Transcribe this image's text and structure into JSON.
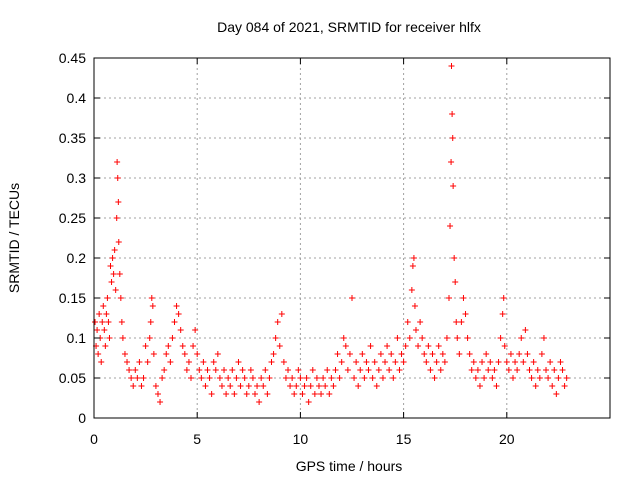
{
  "chart_data": {
    "type": "scatter",
    "title": "Day 084 of 2021, SRMTID for receiver hlfx",
    "xlabel": "GPS time / hours",
    "ylabel": "SRMTID / TECUs",
    "xlim": [
      0,
      25
    ],
    "ylim": [
      0,
      0.45
    ],
    "x_ticks": [
      0,
      5,
      10,
      15,
      20
    ],
    "x_tick_labels": [
      "0",
      "5",
      "10",
      "15",
      "20"
    ],
    "y_ticks": [
      0,
      0.05,
      0.1,
      0.15,
      0.2,
      0.25,
      0.3,
      0.35,
      0.4,
      0.45
    ],
    "y_tick_labels": [
      "0",
      "0.05",
      "0.1",
      "0.15",
      "0.2",
      "0.25",
      "0.3",
      "0.35",
      "0.4",
      "0.45"
    ],
    "grid": true,
    "marker": "+",
    "color": "#ff0000",
    "series": [
      {
        "name": "SRMTID",
        "points": [
          [
            0.05,
            0.12
          ],
          [
            0.1,
            0.09
          ],
          [
            0.15,
            0.11
          ],
          [
            0.2,
            0.08
          ],
          [
            0.25,
            0.13
          ],
          [
            0.3,
            0.1
          ],
          [
            0.35,
            0.07
          ],
          [
            0.4,
            0.12
          ],
          [
            0.45,
            0.14
          ],
          [
            0.5,
            0.11
          ],
          [
            0.55,
            0.09
          ],
          [
            0.6,
            0.13
          ],
          [
            0.65,
            0.15
          ],
          [
            0.7,
            0.12
          ],
          [
            0.75,
            0.1
          ],
          [
            0.8,
            0.19
          ],
          [
            0.85,
            0.17
          ],
          [
            0.9,
            0.2
          ],
          [
            0.95,
            0.18
          ],
          [
            1.0,
            0.21
          ],
          [
            1.05,
            0.16
          ],
          [
            1.1,
            0.25
          ],
          [
            1.12,
            0.32
          ],
          [
            1.15,
            0.3
          ],
          [
            1.18,
            0.27
          ],
          [
            1.2,
            0.22
          ],
          [
            1.25,
            0.18
          ],
          [
            1.3,
            0.15
          ],
          [
            1.35,
            0.12
          ],
          [
            1.4,
            0.1
          ],
          [
            1.5,
            0.08
          ],
          [
            1.6,
            0.07
          ],
          [
            1.7,
            0.06
          ],
          [
            1.8,
            0.05
          ],
          [
            1.9,
            0.04
          ],
          [
            2.0,
            0.06
          ],
          [
            2.1,
            0.05
          ],
          [
            2.2,
            0.07
          ],
          [
            2.3,
            0.04
          ],
          [
            2.4,
            0.05
          ],
          [
            2.5,
            0.09
          ],
          [
            2.6,
            0.07
          ],
          [
            2.7,
            0.1
          ],
          [
            2.75,
            0.12
          ],
          [
            2.8,
            0.15
          ],
          [
            2.85,
            0.14
          ],
          [
            2.9,
            0.08
          ],
          [
            3.0,
            0.04
          ],
          [
            3.1,
            0.03
          ],
          [
            3.2,
            0.02
          ],
          [
            3.3,
            0.05
          ],
          [
            3.4,
            0.06
          ],
          [
            3.5,
            0.08
          ],
          [
            3.6,
            0.09
          ],
          [
            3.7,
            0.07
          ],
          [
            3.8,
            0.1
          ],
          [
            3.9,
            0.12
          ],
          [
            4.0,
            0.14
          ],
          [
            4.1,
            0.13
          ],
          [
            4.2,
            0.11
          ],
          [
            4.3,
            0.09
          ],
          [
            4.4,
            0.08
          ],
          [
            4.5,
            0.06
          ],
          [
            4.6,
            0.07
          ],
          [
            4.7,
            0.05
          ],
          [
            4.8,
            0.09
          ],
          [
            4.9,
            0.11
          ],
          [
            5.0,
            0.08
          ],
          [
            5.1,
            0.06
          ],
          [
            5.2,
            0.05
          ],
          [
            5.3,
            0.07
          ],
          [
            5.4,
            0.04
          ],
          [
            5.5,
            0.06
          ],
          [
            5.6,
            0.05
          ],
          [
            5.7,
            0.03
          ],
          [
            5.8,
            0.07
          ],
          [
            5.9,
            0.06
          ],
          [
            6.0,
            0.08
          ],
          [
            6.1,
            0.05
          ],
          [
            6.2,
            0.04
          ],
          [
            6.3,
            0.06
          ],
          [
            6.4,
            0.03
          ],
          [
            6.5,
            0.05
          ],
          [
            6.6,
            0.04
          ],
          [
            6.7,
            0.06
          ],
          [
            6.8,
            0.03
          ],
          [
            6.9,
            0.05
          ],
          [
            7.0,
            0.07
          ],
          [
            7.1,
            0.04
          ],
          [
            7.2,
            0.06
          ],
          [
            7.3,
            0.05
          ],
          [
            7.4,
            0.03
          ],
          [
            7.5,
            0.04
          ],
          [
            7.6,
            0.06
          ],
          [
            7.7,
            0.05
          ],
          [
            7.8,
            0.03
          ],
          [
            7.9,
            0.04
          ],
          [
            8.0,
            0.02
          ],
          [
            8.1,
            0.05
          ],
          [
            8.2,
            0.04
          ],
          [
            8.3,
            0.06
          ],
          [
            8.4,
            0.03
          ],
          [
            8.5,
            0.05
          ],
          [
            8.6,
            0.07
          ],
          [
            8.7,
            0.08
          ],
          [
            8.8,
            0.1
          ],
          [
            8.9,
            0.12
          ],
          [
            9.0,
            0.09
          ],
          [
            9.1,
            0.13
          ],
          [
            9.2,
            0.07
          ],
          [
            9.3,
            0.05
          ],
          [
            9.4,
            0.06
          ],
          [
            9.5,
            0.04
          ],
          [
            9.6,
            0.05
          ],
          [
            9.7,
            0.03
          ],
          [
            9.8,
            0.04
          ],
          [
            9.9,
            0.06
          ],
          [
            10.0,
            0.05
          ],
          [
            10.1,
            0.03
          ],
          [
            10.2,
            0.04
          ],
          [
            10.3,
            0.05
          ],
          [
            10.4,
            0.02
          ],
          [
            10.5,
            0.04
          ],
          [
            10.6,
            0.06
          ],
          [
            10.7,
            0.03
          ],
          [
            10.8,
            0.05
          ],
          [
            10.9,
            0.04
          ],
          [
            11.0,
            0.03
          ],
          [
            11.1,
            0.05
          ],
          [
            11.2,
            0.04
          ],
          [
            11.3,
            0.06
          ],
          [
            11.4,
            0.03
          ],
          [
            11.5,
            0.05
          ],
          [
            11.6,
            0.04
          ],
          [
            11.7,
            0.06
          ],
          [
            11.8,
            0.08
          ],
          [
            11.9,
            0.05
          ],
          [
            12.0,
            0.07
          ],
          [
            12.1,
            0.1
          ],
          [
            12.2,
            0.09
          ],
          [
            12.3,
            0.06
          ],
          [
            12.4,
            0.08
          ],
          [
            12.5,
            0.15
          ],
          [
            12.6,
            0.05
          ],
          [
            12.7,
            0.07
          ],
          [
            12.8,
            0.04
          ],
          [
            12.9,
            0.06
          ],
          [
            13.0,
            0.08
          ],
          [
            13.1,
            0.05
          ],
          [
            13.2,
            0.07
          ],
          [
            13.3,
            0.06
          ],
          [
            13.4,
            0.09
          ],
          [
            13.5,
            0.05
          ],
          [
            13.6,
            0.07
          ],
          [
            13.7,
            0.04
          ],
          [
            13.8,
            0.06
          ],
          [
            13.9,
            0.08
          ],
          [
            14.0,
            0.05
          ],
          [
            14.1,
            0.07
          ],
          [
            14.2,
            0.09
          ],
          [
            14.3,
            0.06
          ],
          [
            14.4,
            0.08
          ],
          [
            14.5,
            0.05
          ],
          [
            14.6,
            0.07
          ],
          [
            14.7,
            0.1
          ],
          [
            14.8,
            0.06
          ],
          [
            14.9,
            0.08
          ],
          [
            15.0,
            0.07
          ],
          [
            15.1,
            0.09
          ],
          [
            15.2,
            0.12
          ],
          [
            15.3,
            0.1
          ],
          [
            15.4,
            0.16
          ],
          [
            15.45,
            0.19
          ],
          [
            15.5,
            0.2
          ],
          [
            15.55,
            0.14
          ],
          [
            15.6,
            0.11
          ],
          [
            15.7,
            0.09
          ],
          [
            15.8,
            0.12
          ],
          [
            15.9,
            0.1
          ],
          [
            16.0,
            0.08
          ],
          [
            16.1,
            0.07
          ],
          [
            16.2,
            0.09
          ],
          [
            16.3,
            0.06
          ],
          [
            16.4,
            0.08
          ],
          [
            16.5,
            0.05
          ],
          [
            16.6,
            0.07
          ],
          [
            16.7,
            0.09
          ],
          [
            16.8,
            0.06
          ],
          [
            16.9,
            0.08
          ],
          [
            17.0,
            0.07
          ],
          [
            17.1,
            0.1
          ],
          [
            17.2,
            0.15
          ],
          [
            17.25,
            0.24
          ],
          [
            17.3,
            0.32
          ],
          [
            17.32,
            0.44
          ],
          [
            17.35,
            0.38
          ],
          [
            17.38,
            0.35
          ],
          [
            17.4,
            0.29
          ],
          [
            17.45,
            0.2
          ],
          [
            17.5,
            0.17
          ],
          [
            17.55,
            0.12
          ],
          [
            17.6,
            0.1
          ],
          [
            17.7,
            0.08
          ],
          [
            17.8,
            0.12
          ],
          [
            17.9,
            0.15
          ],
          [
            18.0,
            0.13
          ],
          [
            18.1,
            0.1
          ],
          [
            18.2,
            0.08
          ],
          [
            18.3,
            0.06
          ],
          [
            18.4,
            0.07
          ],
          [
            18.5,
            0.05
          ],
          [
            18.6,
            0.06
          ],
          [
            18.7,
            0.04
          ],
          [
            18.8,
            0.07
          ],
          [
            18.9,
            0.05
          ],
          [
            19.0,
            0.08
          ],
          [
            19.1,
            0.06
          ],
          [
            19.2,
            0.07
          ],
          [
            19.3,
            0.05
          ],
          [
            19.4,
            0.06
          ],
          [
            19.5,
            0.04
          ],
          [
            19.6,
            0.07
          ],
          [
            19.7,
            0.1
          ],
          [
            19.8,
            0.13
          ],
          [
            19.85,
            0.15
          ],
          [
            19.9,
            0.09
          ],
          [
            20.0,
            0.07
          ],
          [
            20.1,
            0.06
          ],
          [
            20.2,
            0.08
          ],
          [
            20.3,
            0.05
          ],
          [
            20.4,
            0.07
          ],
          [
            20.5,
            0.06
          ],
          [
            20.6,
            0.08
          ],
          [
            20.7,
            0.1
          ],
          [
            20.8,
            0.07
          ],
          [
            20.9,
            0.11
          ],
          [
            21.0,
            0.08
          ],
          [
            21.1,
            0.06
          ],
          [
            21.2,
            0.05
          ],
          [
            21.3,
            0.07
          ],
          [
            21.4,
            0.04
          ],
          [
            21.5,
            0.06
          ],
          [
            21.6,
            0.05
          ],
          [
            21.7,
            0.08
          ],
          [
            21.8,
            0.1
          ],
          [
            21.9,
            0.06
          ],
          [
            22.0,
            0.05
          ],
          [
            22.1,
            0.07
          ],
          [
            22.2,
            0.04
          ],
          [
            22.3,
            0.06
          ],
          [
            22.4,
            0.03
          ],
          [
            22.5,
            0.05
          ],
          [
            22.6,
            0.07
          ],
          [
            22.7,
            0.06
          ],
          [
            22.8,
            0.04
          ],
          [
            22.9,
            0.05
          ]
        ]
      }
    ]
  }
}
